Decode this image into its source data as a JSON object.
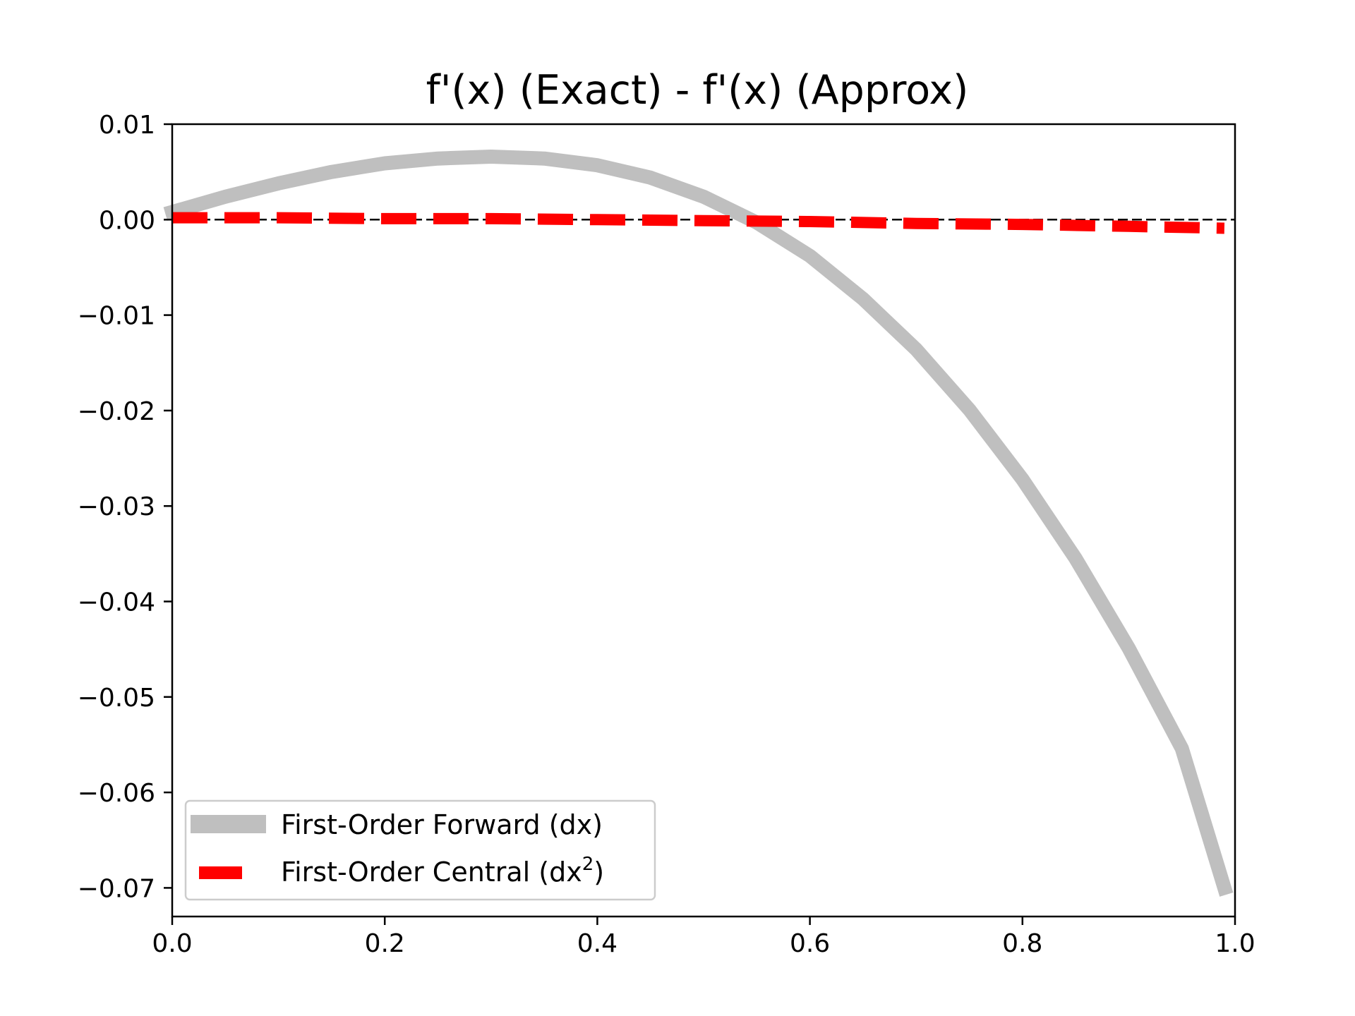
{
  "chart_data": {
    "type": "line",
    "title": "f'(x) (Exact) - f'(x) (Approx)",
    "xlabel": "",
    "ylabel": "",
    "xlim": [
      0.0,
      1.0
    ],
    "ylim": [
      -0.073,
      0.01
    ],
    "x_ticks": [
      {
        "value": 0.0,
        "label": "0.0"
      },
      {
        "value": 0.2,
        "label": "0.2"
      },
      {
        "value": 0.4,
        "label": "0.4"
      },
      {
        "value": 0.6,
        "label": "0.6"
      },
      {
        "value": 0.8,
        "label": "0.8"
      },
      {
        "value": 1.0,
        "label": "1.0"
      }
    ],
    "y_ticks": [
      {
        "value": 0.01,
        "label": "0.01"
      },
      {
        "value": 0.0,
        "label": "0.00"
      },
      {
        "value": -0.01,
        "label": "−0.01"
      },
      {
        "value": -0.02,
        "label": "−0.02"
      },
      {
        "value": -0.03,
        "label": "−0.03"
      },
      {
        "value": -0.04,
        "label": "−0.04"
      },
      {
        "value": -0.05,
        "label": "−0.05"
      },
      {
        "value": -0.06,
        "label": "−0.06"
      },
      {
        "value": -0.07,
        "label": "−0.07"
      }
    ],
    "grid": false,
    "legend_position": "lower-left",
    "zero_reference_line": {
      "y": 0.0,
      "color": "#000000",
      "style": "dashed"
    },
    "series": [
      {
        "name": "First-Order Forward (dx)",
        "color": "#bfbfbf",
        "style": "solid",
        "x": [
          0.0,
          0.05,
          0.1,
          0.15,
          0.2,
          0.25,
          0.3,
          0.35,
          0.4,
          0.45,
          0.5,
          0.55,
          0.6,
          0.65,
          0.7,
          0.75,
          0.8,
          0.85,
          0.9,
          0.95,
          0.99
        ],
        "y": [
          0.0008,
          0.0024,
          0.0038,
          0.005,
          0.0059,
          0.0064,
          0.0066,
          0.0064,
          0.0057,
          0.0044,
          0.0024,
          -0.0003,
          -0.0038,
          -0.0083,
          -0.0136,
          -0.0199,
          -0.0272,
          -0.0355,
          -0.0449,
          -0.0554,
          -0.07
        ]
      },
      {
        "name": "First-Order Central (dx²)",
        "name_base": "First-Order Central (dx",
        "name_sup": "2",
        "name_tail": ")",
        "color": "#ff0000",
        "style": "dashed",
        "x": [
          0.0,
          0.1,
          0.2,
          0.3,
          0.4,
          0.5,
          0.6,
          0.7,
          0.8,
          0.9,
          0.99
        ],
        "y": [
          0.0002,
          0.0002,
          0.0001,
          0.0001,
          0.0,
          -0.0001,
          -0.0002,
          -0.0004,
          -0.0005,
          -0.0007,
          -0.0009
        ]
      }
    ]
  }
}
